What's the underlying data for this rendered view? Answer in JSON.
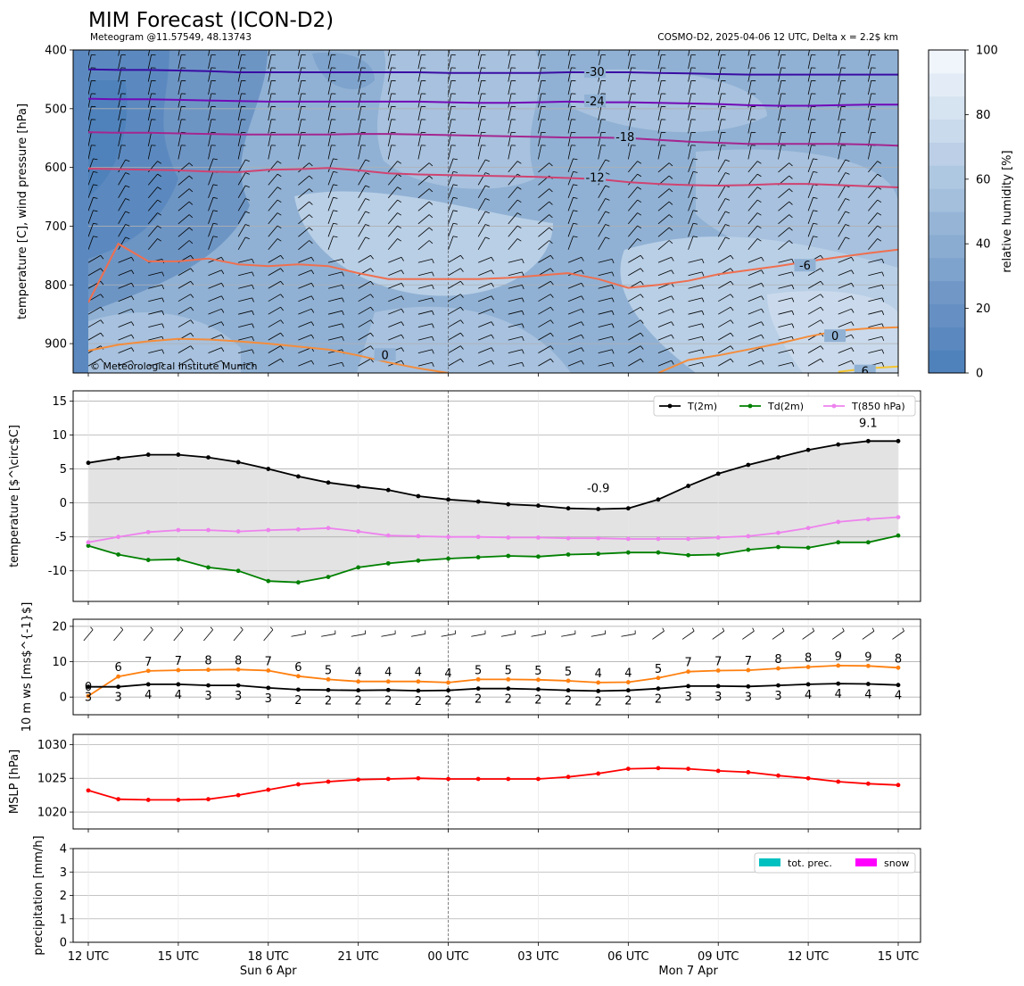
{
  "header": {
    "title": "MIM Forecast (ICON-D2)",
    "subtitle_left": "Meteogram @11.57549, 48.13743",
    "subtitle_right": "COSMO-D2, 2025-04-06 12 UTC, Delta x = 2.2$ km",
    "copyright": "© Meteorological Institute Munich"
  },
  "time_axis": {
    "steps": 28,
    "ticks": [
      {
        "i": 0,
        "label": "12 UTC"
      },
      {
        "i": 3,
        "label": "15 UTC"
      },
      {
        "i": 6,
        "label": "18 UTC"
      },
      {
        "i": 9,
        "label": "21 UTC"
      },
      {
        "i": 12,
        "label": "00 UTC"
      },
      {
        "i": 15,
        "label": "03 UTC"
      },
      {
        "i": 18,
        "label": "06 UTC"
      },
      {
        "i": 21,
        "label": "09 UTC"
      },
      {
        "i": 24,
        "label": "12 UTC"
      },
      {
        "i": 27,
        "label": "15 UTC"
      }
    ],
    "day_labels": [
      {
        "i": 6,
        "label": "Sun 6 Apr"
      },
      {
        "i": 20,
        "label": "Mon 7 Apr"
      }
    ],
    "midnight_index": 12
  },
  "chart_data": [
    {
      "type": "heatmap",
      "name": "upper-air",
      "ylabel": "temperature [C], wind pressure [hPa]",
      "ylim": [
        950,
        400
      ],
      "yticks": [
        400,
        500,
        600,
        700,
        800,
        900
      ],
      "colorbar": {
        "label": "relative humidity [%]",
        "range": [
          0,
          100
        ],
        "ticks": [
          0,
          20,
          40,
          60,
          80,
          100
        ]
      },
      "isotherms": [
        {
          "label": "-30",
          "color": "#3a0ca3",
          "p": [
            433,
            434,
            434,
            435,
            436,
            438,
            438,
            438,
            438,
            438,
            438,
            438,
            439,
            439,
            439,
            439,
            438,
            438,
            438,
            439,
            440,
            441,
            442,
            442,
            442,
            442,
            442,
            442
          ]
        },
        {
          "label": "-24",
          "color": "#7209b7",
          "p": [
            483,
            484,
            484,
            485,
            486,
            487,
            488,
            488,
            488,
            488,
            488,
            488,
            489,
            490,
            490,
            489,
            488,
            489,
            489,
            490,
            491,
            492,
            494,
            495,
            495,
            494,
            493,
            493
          ]
        },
        {
          "label": "-18",
          "color": "#a4268f",
          "p": [
            540,
            541,
            541,
            542,
            543,
            544,
            544,
            544,
            544,
            543,
            543,
            544,
            545,
            546,
            547,
            548,
            549,
            549,
            550,
            553,
            556,
            558,
            560,
            560,
            560,
            560,
            561,
            563
          ]
        },
        {
          "label": "-12",
          "color": "#d04371",
          "p": [
            602,
            603,
            604,
            605,
            607,
            608,
            604,
            603,
            601,
            605,
            610,
            612,
            613,
            614,
            615,
            616,
            618,
            620,
            625,
            628,
            630,
            631,
            630,
            628,
            628,
            630,
            632,
            634
          ]
        },
        {
          "label": "-6",
          "color": "#ef6f4f",
          "p": [
            830,
            730,
            760,
            760,
            755,
            765,
            768,
            765,
            768,
            780,
            790,
            790,
            790,
            790,
            788,
            784,
            780,
            790,
            805,
            800,
            793,
            782,
            775,
            768,
            760,
            753,
            746,
            740
          ]
        },
        {
          "label": "0",
          "color": "#f48c3b",
          "p": [
            912,
            902,
            896,
            892,
            893,
            896,
            900,
            905,
            910,
            920,
            932,
            942,
            950
          ]
        },
        {
          "label": "0",
          "color": "#f48c3b",
          "p": [
            null,
            null,
            null,
            null,
            null,
            null,
            null,
            null,
            null,
            null,
            null,
            null,
            null,
            null,
            null,
            null,
            null,
            null,
            null,
            950,
            928,
            920,
            910,
            900,
            888,
            878,
            874,
            872
          ]
        },
        {
          "label": "6",
          "color": "#f4c430",
          "p": [
            null,
            null,
            null,
            null,
            null,
            null,
            null,
            null,
            null,
            null,
            null,
            null,
            null,
            null,
            null,
            null,
            null,
            null,
            null,
            null,
            null,
            null,
            null,
            null,
            null,
            948,
            942,
            939
          ]
        }
      ]
    },
    {
      "type": "line",
      "name": "temperature",
      "ylabel": "temperature [$^\\circ$C]",
      "ylim": [
        -14.5,
        16.5
      ],
      "yticks": [
        -10,
        -5,
        0,
        5,
        10,
        15
      ],
      "series": [
        {
          "name": "T(2m)",
          "color": "#000000",
          "values": [
            5.9,
            6.6,
            7.1,
            7.1,
            6.7,
            6.0,
            5.0,
            3.9,
            3.0,
            2.4,
            1.9,
            1.0,
            0.5,
            0.2,
            -0.2,
            -0.4,
            -0.8,
            -0.9,
            -0.8,
            0.5,
            2.5,
            4.3,
            5.6,
            6.7,
            7.8,
            8.6,
            9.1,
            9.1
          ]
        },
        {
          "name": "Td(2m)",
          "color": "#008000",
          "values": [
            -6.3,
            -7.6,
            -8.4,
            -8.3,
            -9.5,
            -10.0,
            -11.5,
            -11.7,
            -10.9,
            -9.5,
            -8.9,
            -8.5,
            -8.2,
            -8.0,
            -7.8,
            -7.9,
            -7.6,
            -7.5,
            -7.3,
            -7.3,
            -7.7,
            -7.6,
            -6.9,
            -6.5,
            -6.6,
            -5.8,
            -5.8,
            -4.8
          ]
        },
        {
          "name": "T(850 hPa)",
          "color": "#ee82ee",
          "values": [
            -5.8,
            -5.0,
            -4.3,
            -4.0,
            -4.0,
            -4.2,
            -4.0,
            -3.9,
            -3.7,
            -4.2,
            -4.8,
            -4.9,
            -5.0,
            -5.0,
            -5.1,
            -5.1,
            -5.2,
            -5.2,
            -5.3,
            -5.3,
            -5.3,
            -5.1,
            -4.9,
            -4.4,
            -3.7,
            -2.8,
            -2.4,
            -2.1
          ]
        }
      ],
      "annotations": [
        {
          "text": "-0.9",
          "color": "#0000cd",
          "i": 17,
          "y": 1.6
        },
        {
          "text": "9.1",
          "color": "#e00000",
          "i": 26,
          "y": 11.2
        }
      ]
    },
    {
      "type": "line",
      "name": "wind",
      "ylabel": "10 m ws [ms$^{-1}$]",
      "ylim": [
        -5,
        22
      ],
      "yticks": [
        0,
        10,
        20
      ],
      "series": [
        {
          "name": "gust",
          "color": "#ff7f0e",
          "values": [
            0.3,
            5.8,
            7.4,
            7.6,
            7.7,
            7.8,
            7.5,
            5.9,
            5.0,
            4.4,
            4.4,
            4.4,
            4.1,
            5.0,
            5.0,
            4.9,
            4.6,
            4.1,
            4.2,
            5.4,
            7.2,
            7.5,
            7.6,
            8.1,
            8.5,
            8.9,
            8.8,
            8.3
          ]
        },
        {
          "name": "mean",
          "color": "#000000",
          "values": [
            2.9,
            2.9,
            3.6,
            3.6,
            3.3,
            3.3,
            2.6,
            2.1,
            2.0,
            1.9,
            2.0,
            1.8,
            1.9,
            2.4,
            2.4,
            2.2,
            1.9,
            1.7,
            1.9,
            2.4,
            3.1,
            3.1,
            3.0,
            3.3,
            3.6,
            3.8,
            3.7,
            3.4
          ]
        }
      ],
      "gust_labels": [
        "0",
        "6",
        "7",
        "7",
        "8",
        "8",
        "7",
        "6",
        "5",
        "4",
        "4",
        "4",
        "4",
        "5",
        "5",
        "5",
        "5",
        "4",
        "4",
        "5",
        "7",
        "7",
        "7",
        "8",
        "8",
        "9",
        "9",
        "8"
      ],
      "mean_labels": [
        "3",
        "3",
        "4",
        "4",
        "3",
        "3",
        "3",
        "2",
        "2",
        "2",
        "2",
        "2",
        "2",
        "2",
        "2",
        "2",
        "2",
        "2",
        "2",
        "2",
        "3",
        "3",
        "3",
        "3",
        "4",
        "4",
        "4",
        "4"
      ]
    },
    {
      "type": "line",
      "name": "mslp",
      "ylabel": "MSLP [hPa]",
      "ylim": [
        1017.5,
        1031.5
      ],
      "yticks": [
        1020,
        1025,
        1030
      ],
      "series": [
        {
          "name": "MSLP",
          "color": "#ff0000",
          "values": [
            1023.2,
            1021.9,
            1021.8,
            1021.8,
            1021.9,
            1022.5,
            1023.3,
            1024.1,
            1024.5,
            1024.8,
            1024.9,
            1025.0,
            1024.9,
            1024.9,
            1024.9,
            1024.9,
            1025.2,
            1025.7,
            1026.4,
            1026.5,
            1026.4,
            1026.1,
            1025.9,
            1025.4,
            1025.0,
            1024.5,
            1024.2,
            1024.0
          ]
        }
      ]
    },
    {
      "type": "bar",
      "name": "precipitation",
      "ylabel": "precipitation [mm/h]",
      "ylim": [
        0,
        4
      ],
      "yticks": [
        0,
        1,
        2,
        3,
        4
      ],
      "series": [
        {
          "name": "tot. prec.",
          "color": "#00c0c0",
          "values": [
            0,
            0,
            0,
            0,
            0,
            0,
            0,
            0,
            0,
            0,
            0,
            0,
            0,
            0,
            0,
            0,
            0,
            0,
            0,
            0,
            0,
            0,
            0,
            0,
            0,
            0,
            0,
            0
          ]
        },
        {
          "name": "snow",
          "color": "#ff00ff",
          "values": [
            0,
            0,
            0,
            0,
            0,
            0,
            0,
            0,
            0,
            0,
            0,
            0,
            0,
            0,
            0,
            0,
            0,
            0,
            0,
            0,
            0,
            0,
            0,
            0,
            0,
            0,
            0,
            0
          ]
        }
      ]
    }
  ]
}
